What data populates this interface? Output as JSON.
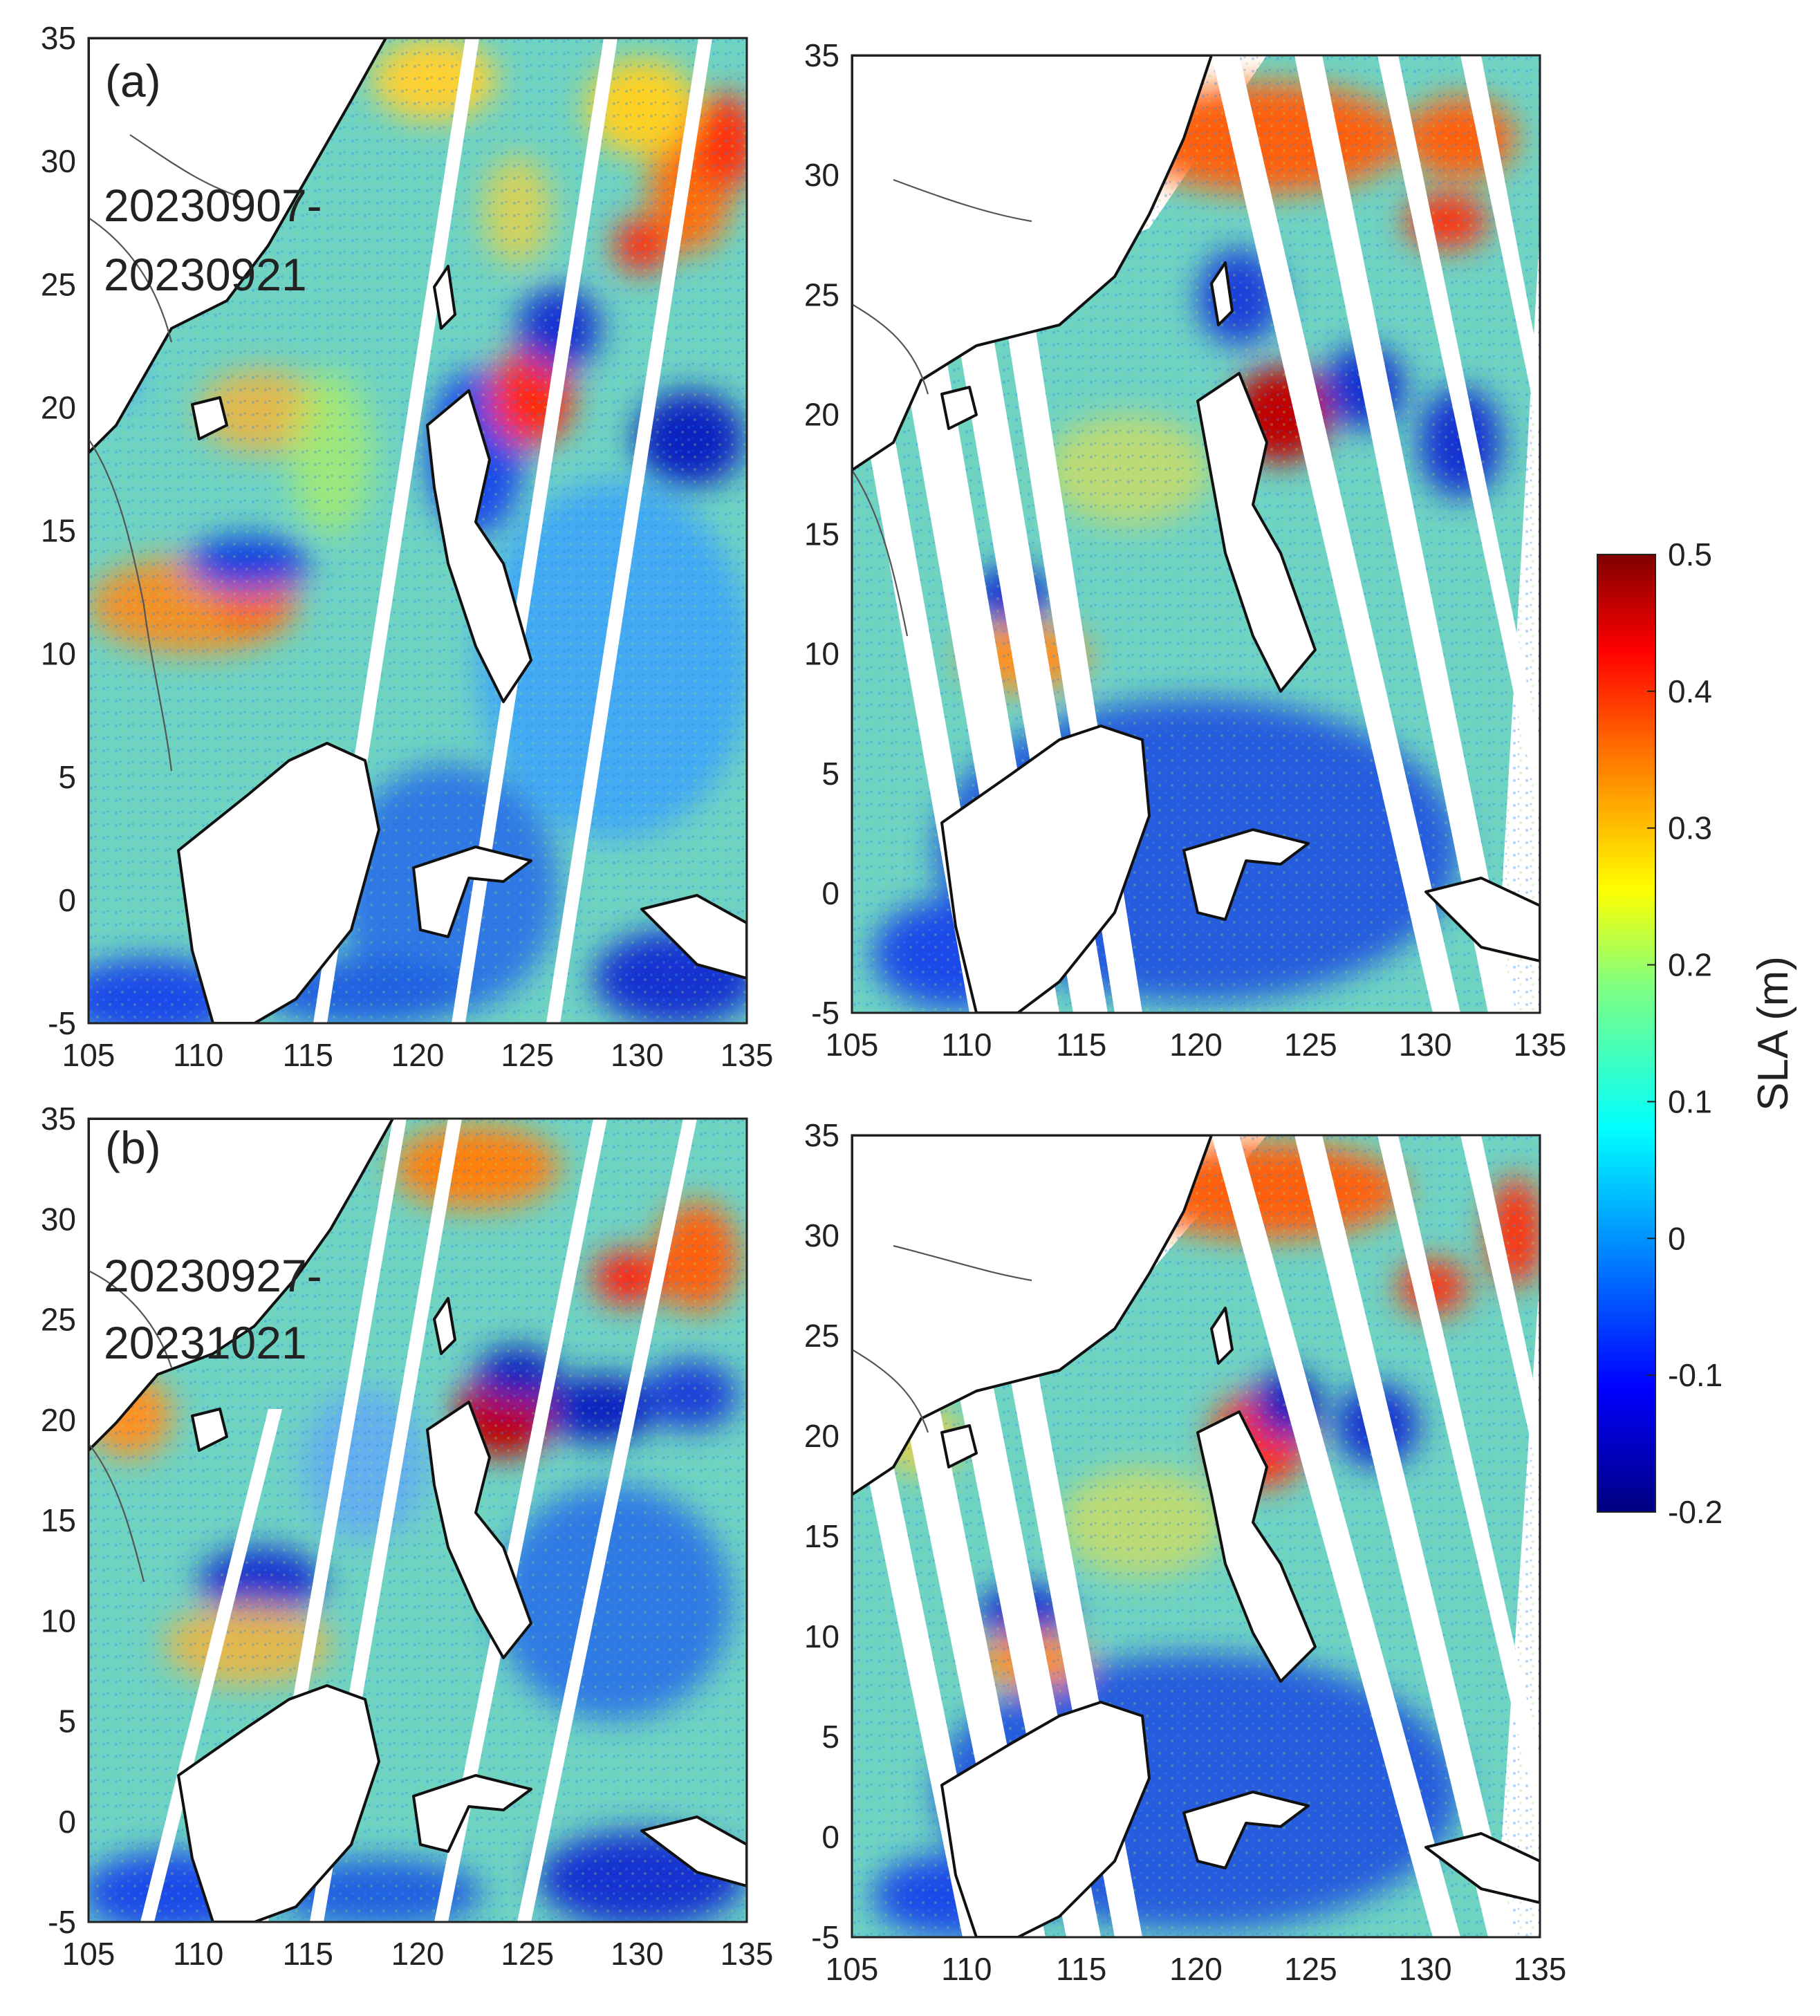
{
  "panels": [
    {
      "id": "a",
      "label": "(a)",
      "date_line1": "20230907-",
      "date_line2": "20230921"
    },
    {
      "id": "a-right",
      "label": "",
      "date_line1": "",
      "date_line2": ""
    },
    {
      "id": "b",
      "label": "(b)",
      "date_line1": "20230927-",
      "date_line2": "20231021"
    },
    {
      "id": "b-right",
      "label": "",
      "date_line1": "",
      "date_line2": ""
    }
  ],
  "axes": {
    "lon_ticks": [
      "105",
      "110",
      "115",
      "120",
      "125",
      "130",
      "135"
    ],
    "lat_ticks": [
      "35",
      "30",
      "25",
      "20",
      "15",
      "10",
      "5",
      "0",
      "-5"
    ],
    "lon_range": [
      105,
      135
    ],
    "lat_range": [
      -5,
      35
    ]
  },
  "colorbar": {
    "title": "SLA (m)",
    "ticks": [
      "0.5",
      "0.4",
      "0.3",
      "0.2",
      "0.1",
      "0",
      "-0.1",
      "-0.2"
    ],
    "range": [
      -0.2,
      0.5
    ],
    "colormap": [
      "#000080",
      "#0000ff",
      "#00a0ff",
      "#00ffff",
      "#80ff80",
      "#ffff00",
      "#ff8000",
      "#ff0000",
      "#800000"
    ]
  },
  "colors": {
    "background_field": "#6fd3c4",
    "land": "#ffffff",
    "coast": "#111111"
  }
}
